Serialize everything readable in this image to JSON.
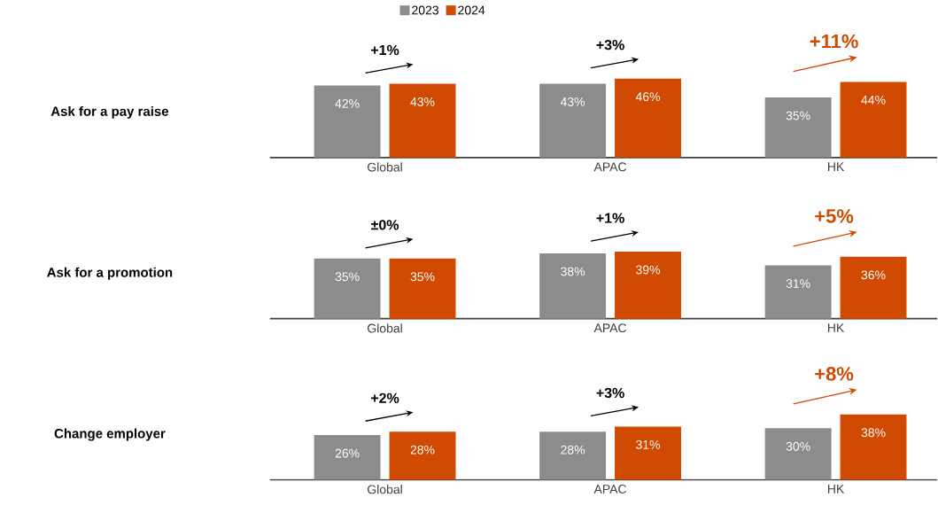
{
  "chart_data": [
    {
      "type": "bar",
      "ylabel": "Ask for a pay raise",
      "categories": [
        "Global",
        "APAC",
        "HK"
      ],
      "legend": "top",
      "series": [
        {
          "name": "2023",
          "color": "#8c8c8c",
          "values": [
            42,
            43,
            35
          ],
          "value_labels": [
            "42%",
            "43%",
            "35%"
          ]
        },
        {
          "name": "2024",
          "color": "#d04a02",
          "values": [
            43,
            46,
            44
          ],
          "value_labels": [
            "43%",
            "46%",
            "44%"
          ]
        }
      ],
      "annotations": [
        "+1%",
        "+3%",
        "+11%"
      ]
    },
    {
      "type": "bar",
      "ylabel": "Ask for a promotion",
      "categories": [
        "Global",
        "APAC",
        "HK"
      ],
      "series": [
        {
          "color": "#8c8c8c",
          "values": [
            35,
            38,
            31
          ],
          "value_labels": [
            "35%",
            "38%",
            "31%"
          ]
        },
        {
          "color": "#d04a02",
          "values": [
            35,
            39,
            36
          ],
          "value_labels": [
            "35%",
            "39%",
            "36%"
          ]
        }
      ],
      "annotations": [
        "±0%",
        "+1%",
        "+5%"
      ]
    },
    {
      "type": "bar",
      "ylabel": "Change employer",
      "categories": [
        "Global",
        "APAC",
        "HK"
      ],
      "series": [
        {
          "color": "#8c8c8c",
          "values": [
            26,
            28,
            30
          ],
          "value_labels": [
            "26%",
            "28%",
            "30%"
          ]
        },
        {
          "color": "#d04a02",
          "values": [
            28,
            31,
            38
          ],
          "value_labels": [
            "28%",
            "31%",
            "38%"
          ]
        }
      ],
      "annotations": [
        "+2%",
        "+3%",
        "+8%"
      ]
    }
  ]
}
